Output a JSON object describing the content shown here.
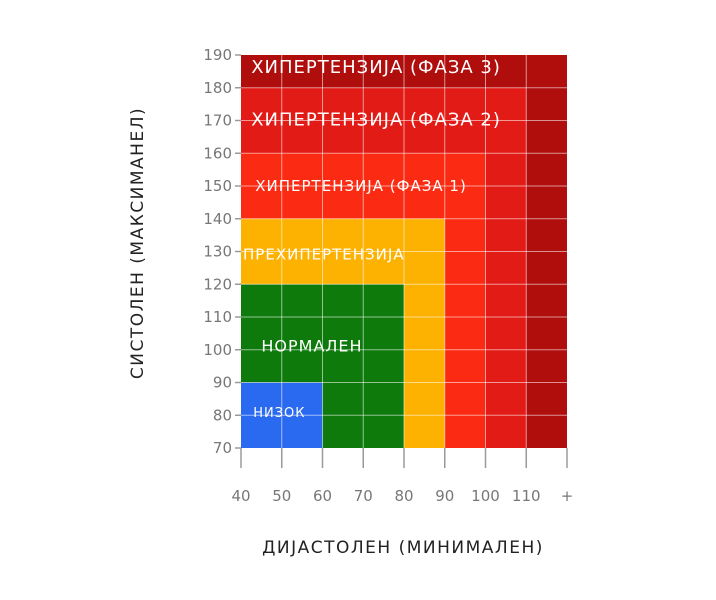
{
  "chart_data": {
    "type": "heatmap",
    "xlabel": "ДИЈАСТОЛЕН (МИНИМАЛЕН)",
    "ylabel": "СИСТОЛЕН (МАКСИМАНЕЛ)",
    "x_ticks": [
      "40",
      "50",
      "60",
      "70",
      "80",
      "90",
      "100",
      "110",
      "+"
    ],
    "y_ticks": [
      "70",
      "80",
      "90",
      "100",
      "110",
      "120",
      "130",
      "140",
      "150",
      "160",
      "170",
      "180",
      "190"
    ],
    "xlim": [
      40,
      120
    ],
    "ylim": [
      70,
      190
    ],
    "grid": true,
    "zones": [
      {
        "label": "ХИПЕРТЕНЗИЈА (ФАЗА 3)",
        "x_max": 120,
        "y_max": 190,
        "color": "#B00D0D"
      },
      {
        "label": "ХИПЕРТЕНЗИЈА (ФАЗА 2)",
        "x_max": 110,
        "y_max": 180,
        "color": "#E31B17"
      },
      {
        "label": "ХИПЕРТЕНЗИЈА (ФАЗА 1)",
        "x_max": 100,
        "y_max": 160,
        "color": "#FB2A12"
      },
      {
        "label": "",
        "x_max": 90,
        "y_max": 140,
        "color": "#FF5200"
      },
      {
        "label": "ПРЕХИПЕРТЕНЗИЈА",
        "x_max": 90,
        "y_max": 140,
        "color": "#FDB100"
      },
      {
        "label": "НОРМАЛЕН",
        "x_max": 80,
        "y_max": 120,
        "color": "#0E7A0C"
      },
      {
        "label": "НИЗОК",
        "x_max": 60,
        "y_max": 90,
        "color": "#2A6AF1"
      }
    ]
  }
}
